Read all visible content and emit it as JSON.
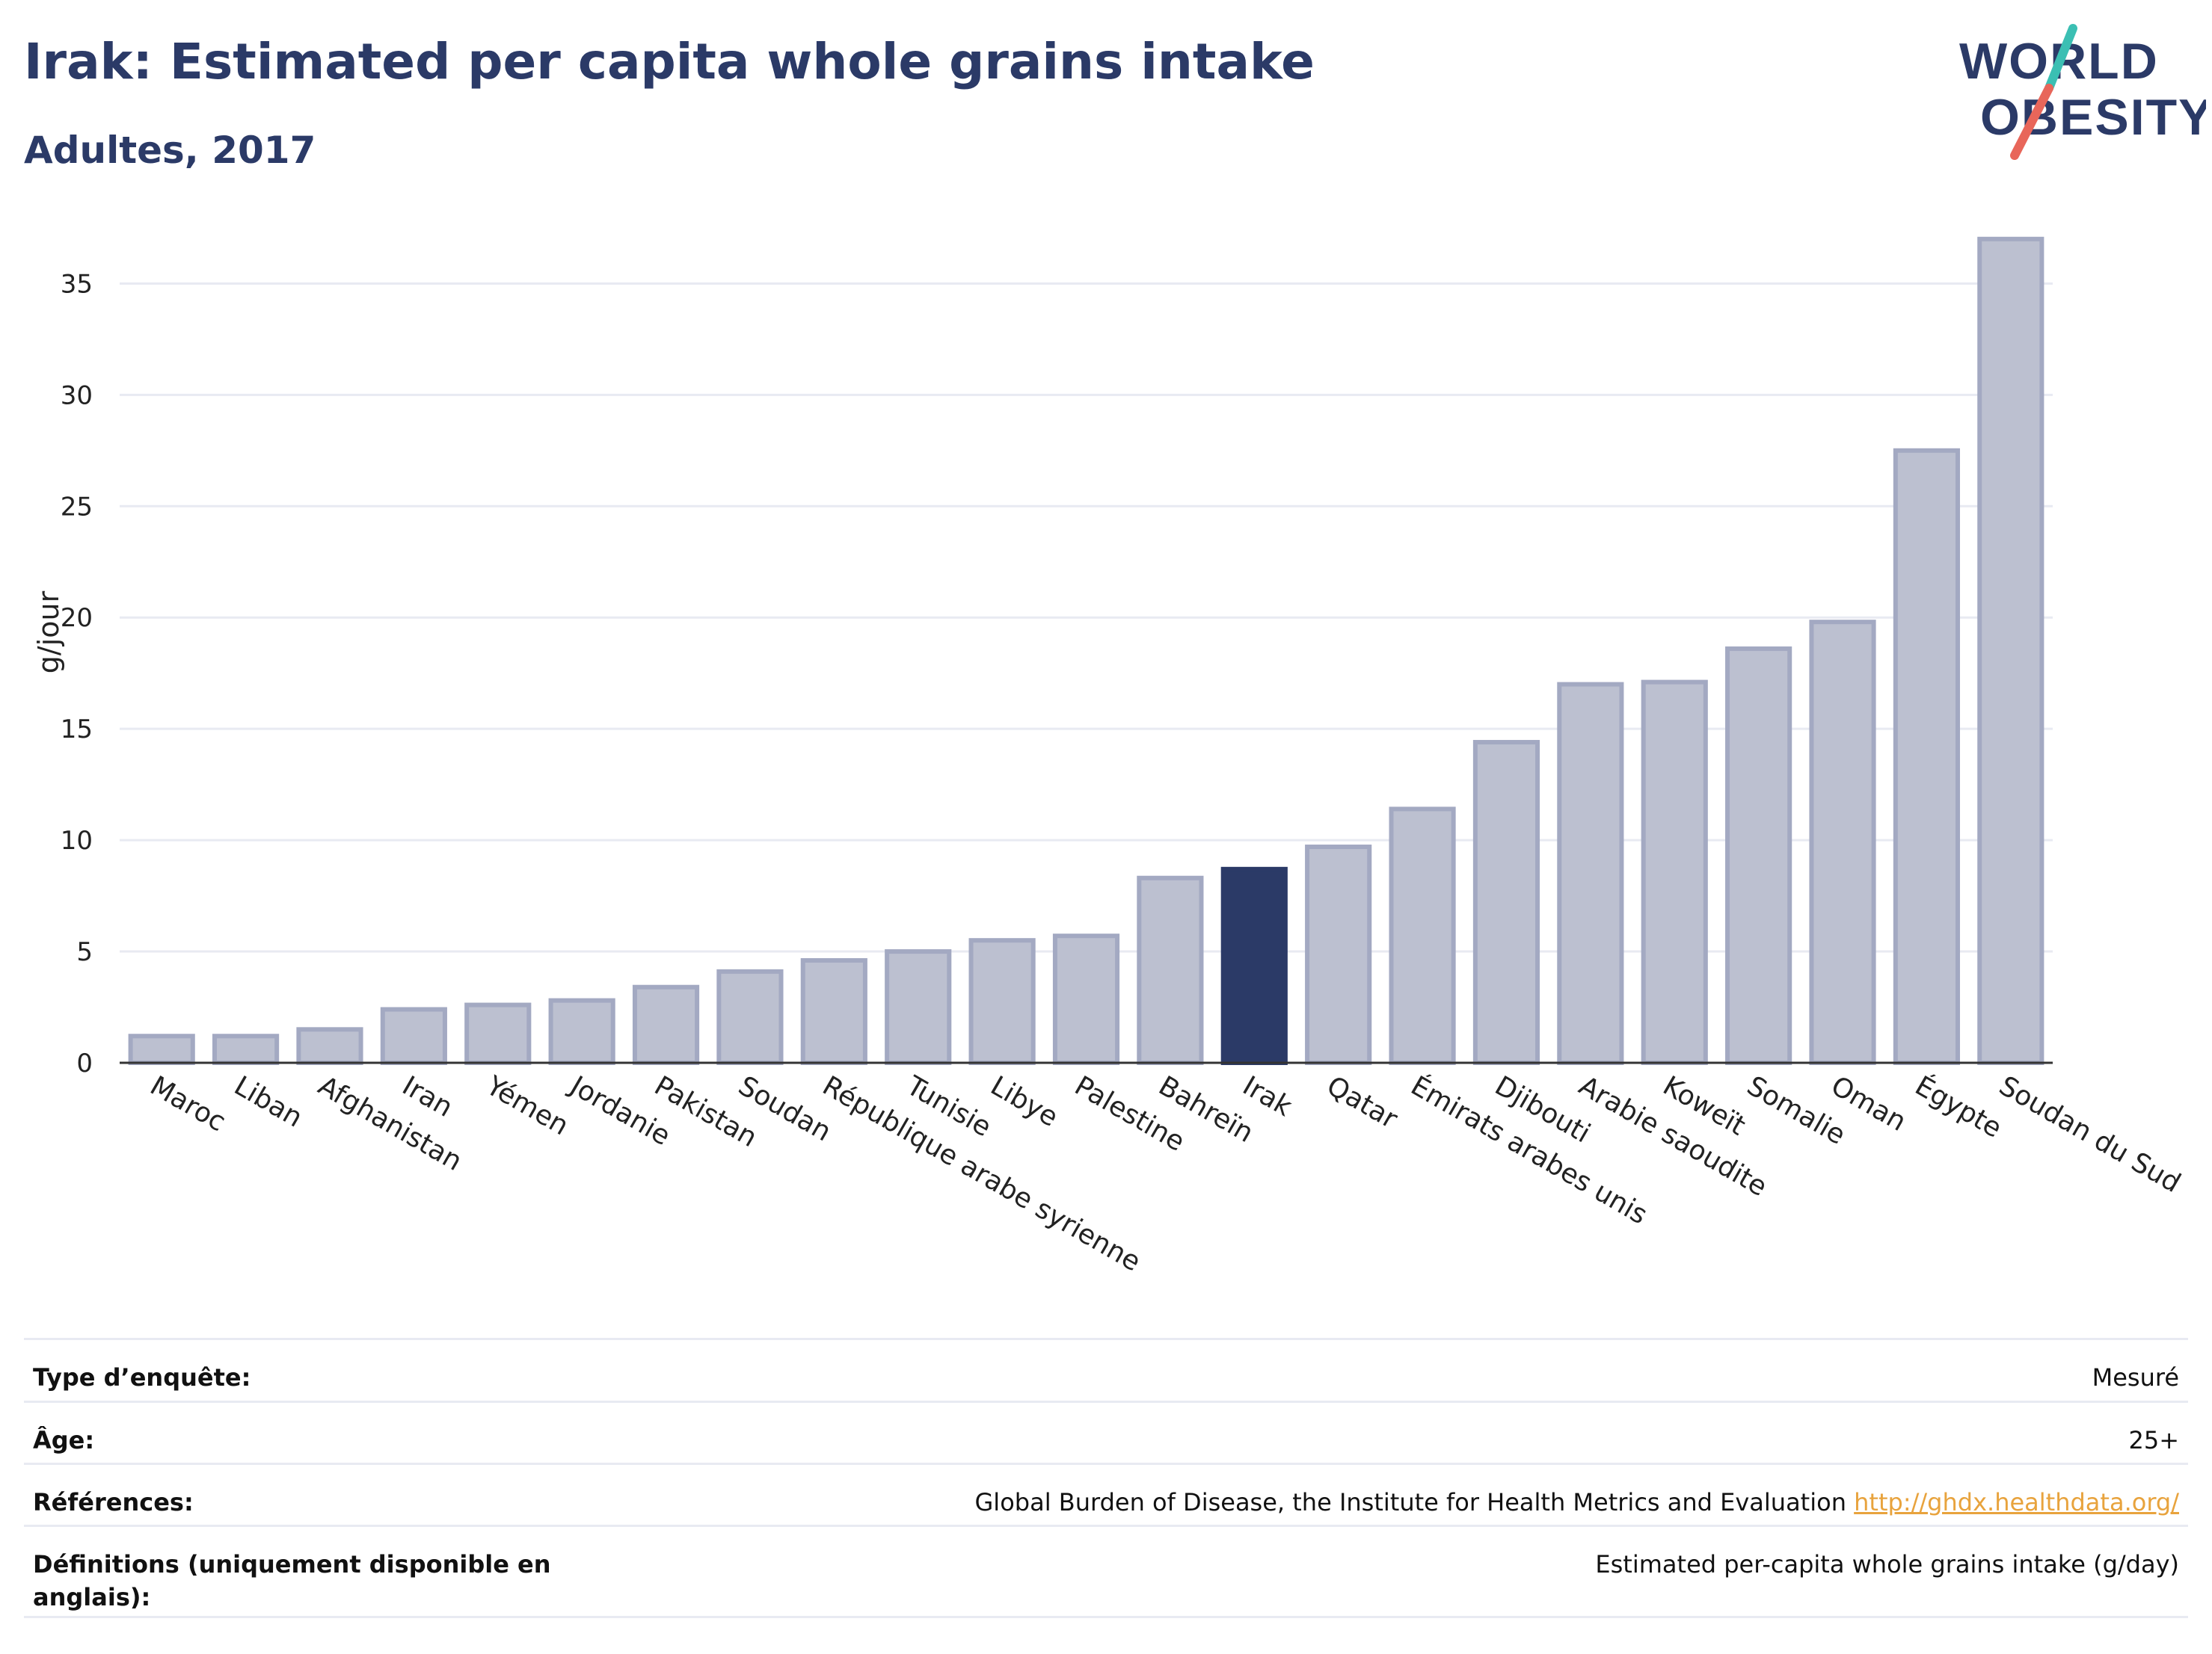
{
  "header": {
    "title": "Irak: Estimated per capita whole grains intake",
    "subtitle": "Adultes, 2017"
  },
  "logo": {
    "line1": "WORLD",
    "line2": "OBESITY",
    "colors": {
      "text": "#2b3a67",
      "slash_top": "#3bbfb3",
      "slash_bottom": "#e8665a"
    }
  },
  "colors": {
    "bar_fill": "#bcc0d0",
    "bar_stroke": "#a3a9c2",
    "highlight": "#2b3a67",
    "grid": "#e8eaf2",
    "axis": "#333333"
  },
  "chart_data": {
    "type": "bar",
    "ylabel": "g/jour",
    "xlabel": "",
    "ylim": [
      0,
      38
    ],
    "yticks": [
      0,
      5,
      10,
      15,
      20,
      25,
      30,
      35
    ],
    "grid": true,
    "highlight": "Irak",
    "categories": [
      "Maroc",
      "Liban",
      "Afghanistan",
      "Iran",
      "Yémen",
      "Jordanie",
      "Pakistan",
      "Soudan",
      "République arabe syrienne",
      "Tunisie",
      "Libye",
      "Palestine",
      "Bahreïn",
      "Irak",
      "Qatar",
      "Émirats arabes unis",
      "Djibouti",
      "Arabie saoudite",
      "Koweït",
      "Somalie",
      "Oman",
      "Égypte",
      "Soudan du Sud"
    ],
    "values": [
      1.2,
      1.2,
      1.5,
      2.4,
      2.6,
      2.8,
      3.4,
      4.1,
      4.6,
      5.0,
      5.5,
      5.7,
      8.3,
      8.7,
      9.7,
      11.4,
      14.4,
      17.0,
      17.1,
      18.6,
      19.8,
      27.5,
      37.0
    ]
  },
  "meta": {
    "rows": [
      {
        "label": "Type d’enquête:",
        "value": "Mesuré"
      },
      {
        "label": "Âge:",
        "value": "25+"
      },
      {
        "label": "Références:",
        "value": "Global Burden of Disease, the Institute for Health Metrics and Evaluation",
        "link": "http://ghdx.healthdata.org/"
      },
      {
        "label": "Définitions (uniquement disponible en anglais):",
        "value": "Estimated per-capita whole grains intake (g/day)"
      }
    ]
  }
}
